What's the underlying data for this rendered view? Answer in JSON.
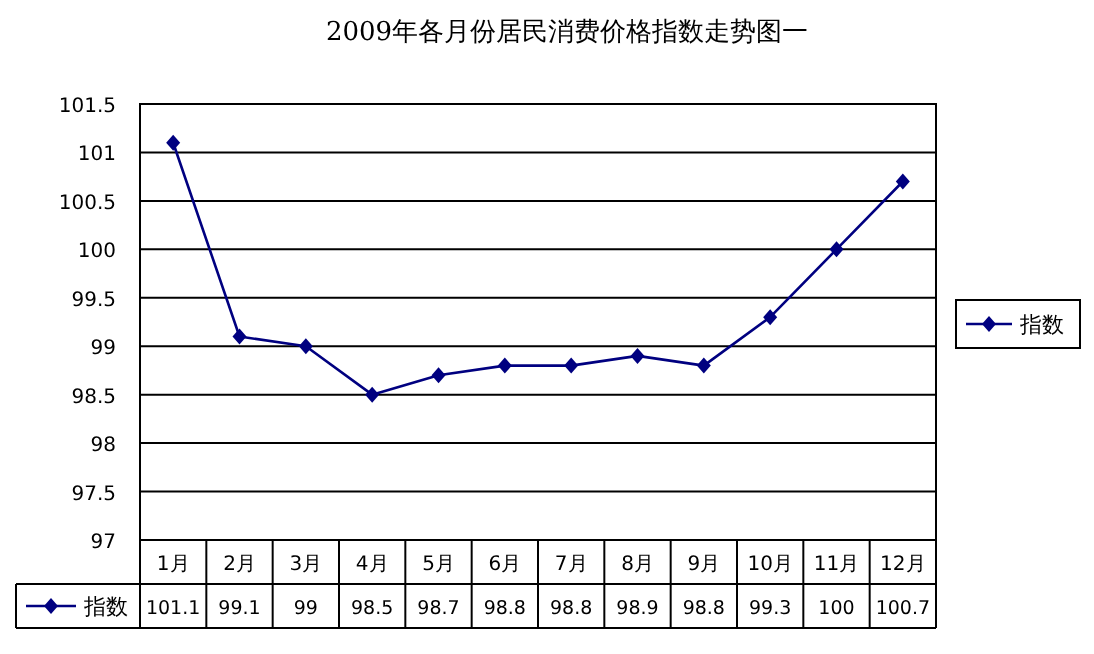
{
  "chart_data": {
    "type": "line",
    "title": "2009年各月份居民消费价格指数走势图一",
    "categories": [
      "1月",
      "2月",
      "3月",
      "4月",
      "5月",
      "6月",
      "7月",
      "8月",
      "9月",
      "10月",
      "11月",
      "12月"
    ],
    "series": [
      {
        "name": "指数",
        "color": "#000080",
        "values": [
          101.1,
          99.1,
          99,
          98.5,
          98.7,
          98.8,
          98.8,
          98.9,
          98.8,
          99.3,
          100,
          100.7
        ]
      }
    ],
    "ylim": [
      97,
      101.5
    ],
    "yticks": [
      97,
      97.5,
      98,
      98.5,
      99,
      99.5,
      100,
      100.5,
      101,
      101.5
    ],
    "grid": "y",
    "legend": "right",
    "marker": "diamond",
    "line_style": "solid",
    "data_labels": true
  }
}
